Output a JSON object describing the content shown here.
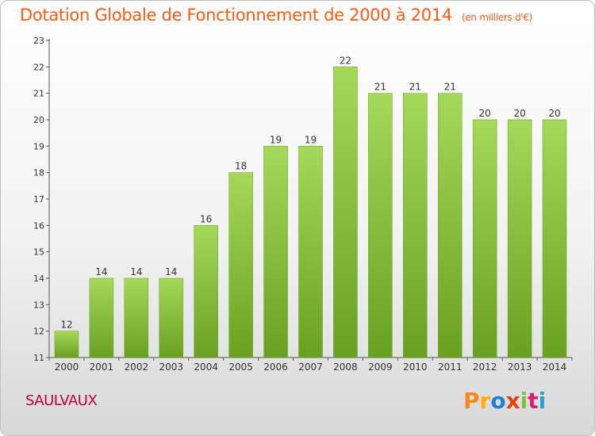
{
  "header": {
    "title": "Dotation Globale de Fonctionnement de 2000 à 2014",
    "unit": "(en milliers d'€)"
  },
  "footer": {
    "commune": "SAULVAUX",
    "logo_text": "Proxiti",
    "logo_colors": [
      "#f08a1e",
      "#ffb000",
      "#1e7fd6",
      "#e64010",
      "#7cc23a",
      "#e01a6e",
      "#28a0d8"
    ]
  },
  "chart_data": {
    "type": "bar",
    "title": "Dotation Globale de Fonctionnement de 2000 à 2014",
    "xlabel": "",
    "ylabel": "",
    "categories": [
      "2000",
      "2001",
      "2002",
      "2003",
      "2004",
      "2005",
      "2006",
      "2007",
      "2008",
      "2009",
      "2010",
      "2011",
      "2012",
      "2013",
      "2014"
    ],
    "values": [
      12,
      14,
      14,
      14,
      16,
      18,
      19,
      19,
      22,
      21,
      21,
      21,
      20,
      20,
      20
    ],
    "ylim": [
      11,
      23
    ],
    "yticks": [
      11,
      12,
      13,
      14,
      15,
      16,
      17,
      18,
      19,
      20,
      21,
      22,
      23
    ],
    "grid": false,
    "bar_color": "#8cc63f",
    "bar_color_light": "#a6d85a",
    "bar_color_dark": "#6aa022"
  }
}
